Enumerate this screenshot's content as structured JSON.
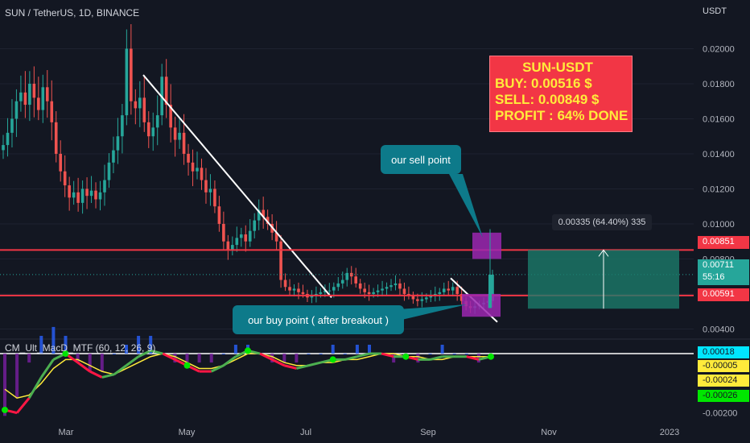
{
  "header": {
    "symbol": "SUN / TetherUS, 1D, BINANCE",
    "currency": "USDT"
  },
  "indicator": {
    "label": "CM_Ult_MacD_MTF (60, 12, 26, 9)"
  },
  "info_box": {
    "title": "SUN-USDT",
    "buy": "BUY: 0.00516 $",
    "sell": "SELL: 0.00849 $",
    "profit": "PROFIT : 64% DONE"
  },
  "callouts": {
    "sell": "our sell point",
    "buy": "our buy point ( after breakout )"
  },
  "measure": {
    "text": "0.00335 (64.40%) 335"
  },
  "price_tags": {
    "resistance": "0.00851",
    "current": "0.00711",
    "countdown": "55:16",
    "support": "0.00591"
  },
  "macd_tags": [
    "0.00018",
    "-0.00005",
    "-0.00024",
    "-0.00026"
  ],
  "colors": {
    "background": "#131722",
    "up": "#26a69a",
    "down": "#ef5350",
    "level_line": "#f23645",
    "highlight": "#9c27b0",
    "callout": "#0d7a8a",
    "info_box": "#f23645",
    "info_text": "#ffeb3b"
  },
  "chart_data": [
    {
      "type": "candlestick",
      "title": "SUN / TetherUS, 1D, BINANCE",
      "yunit": "USDT",
      "xticks": [
        "Mar",
        "May",
        "Jul",
        "Sep",
        "Nov",
        "2023"
      ],
      "yticks": [
        0.004,
        0.006,
        0.008,
        0.01,
        0.012,
        0.014,
        0.016,
        0.018,
        0.02
      ],
      "ylim": [
        0.0037,
        0.0214
      ],
      "horizontal_levels": [
        0.00851,
        0.00591
      ],
      "current_price": 0.00711,
      "trendline": {
        "from": [
          0.0185
        ],
        "to": [
          0.0058
        ]
      },
      "series": [
        {
          "name": "close",
          "values": [
            0.0145,
            0.0152,
            0.016,
            0.017,
            0.0175,
            0.0168,
            0.018,
            0.0172,
            0.0165,
            0.0178,
            0.017,
            0.0158,
            0.014,
            0.013,
            0.0122,
            0.0115,
            0.0118,
            0.0112,
            0.012,
            0.0116,
            0.0119,
            0.0114,
            0.0118,
            0.0125,
            0.0135,
            0.0142,
            0.015,
            0.0162,
            0.02,
            0.017,
            0.0166,
            0.0172,
            0.0158,
            0.015,
            0.0155,
            0.0162,
            0.0184,
            0.0168,
            0.0155,
            0.0148,
            0.0152,
            0.014,
            0.0135,
            0.013,
            0.0132,
            0.0125,
            0.0118,
            0.012,
            0.011,
            0.01,
            0.009,
            0.0085,
            0.0088,
            0.0092,
            0.0094,
            0.009,
            0.0096,
            0.0102,
            0.0108,
            0.0104,
            0.01,
            0.0095,
            0.009,
            0.0068,
            0.0064,
            0.0062,
            0.0063,
            0.0061,
            0.006,
            0.0058,
            0.0059,
            0.006,
            0.0061,
            0.0062,
            0.0062,
            0.0064,
            0.0066,
            0.0068,
            0.0072,
            0.007,
            0.0066,
            0.0063,
            0.0061,
            0.006,
            0.0061,
            0.0062,
            0.0063,
            0.0064,
            0.0065,
            0.0066,
            0.0063,
            0.006,
            0.0059,
            0.0057,
            0.0056,
            0.0057,
            0.0058,
            0.0059,
            0.006,
            0.0061,
            0.0063,
            0.0062,
            0.0064,
            0.006,
            0.0056,
            0.0053,
            0.0052,
            0.0053,
            0.0054,
            0.0055,
            0.0056,
            0.0071
          ]
        }
      ]
    },
    {
      "type": "line",
      "title": "CM_Ult_MacD_MTF (60, 12, 26, 9)",
      "ylim": [
        -0.0022,
        0.0003
      ],
      "yticks": [
        -0.002
      ],
      "series": [
        {
          "name": "macd",
          "values": [
            -0.0019,
            -0.002,
            -0.0015,
            -0.0008,
            -0.0002,
            0.0,
            -0.0003,
            -0.0006,
            -0.0008,
            -0.0007,
            -0.0004,
            -0.0001,
            0.0001,
            0.0,
            -0.0002,
            -0.0004,
            -0.0006,
            -0.0006,
            -0.0004,
            -0.0001,
            0.0001,
            0.0,
            -0.0002,
            -0.0004,
            -0.0005,
            -0.0004,
            -0.0003,
            -0.0002,
            -0.0002,
            -0.0001,
            0.0,
            0.0,
            -0.0001,
            -0.0001,
            -0.0002,
            -0.0002,
            -0.0001,
            -0.0001,
            -0.0001,
            -0.0002,
            -0.0001
          ]
        },
        {
          "name": "signal",
          "values": [
            -0.0012,
            -0.0015,
            -0.0014,
            -0.001,
            -0.0005,
            -0.0002,
            -0.0002,
            -0.0004,
            -0.0006,
            -0.0007,
            -0.0005,
            -0.0003,
            -0.0001,
            0.0,
            -0.0001,
            -0.0003,
            -0.0005,
            -0.0005,
            -0.0004,
            -0.0002,
            0.0,
            0.0,
            -0.0001,
            -0.0003,
            -0.0004,
            -0.0004,
            -0.0003,
            -0.0003,
            -0.0002,
            -0.0002,
            -0.0001,
            0.0,
            0.0,
            -0.0001,
            -0.0001,
            -0.0002,
            -0.0002,
            -0.0001,
            -0.0001,
            -0.0001,
            -0.0001
          ]
        }
      ]
    }
  ]
}
